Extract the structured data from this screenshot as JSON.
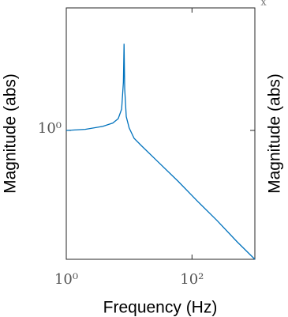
{
  "chart_data": {
    "type": "line",
    "xlabel": "Frequency  (Hz)",
    "ylabel": "Magnitude (abs)",
    "y2label": "Magnitude (abs)",
    "annotation": "x",
    "x": [
      1,
      2,
      3.8,
      5.5,
      6.7,
      7.6,
      8.1,
      8.3,
      8.5,
      9,
      10,
      12,
      16,
      28.8,
      60,
      122,
      250,
      522,
      1000
    ],
    "series": [
      {
        "name": "Magnitude",
        "color": "#0072bd",
        "values": [
          1,
          1.02,
          1.08,
          1.15,
          1.25,
          1.5,
          2.5,
          5.2,
          2.2,
          1.3,
          1.05,
          0.86,
          0.74,
          0.55,
          0.38,
          0.26,
          0.18,
          0.12,
          0.086
        ]
      }
    ],
    "xlim": [
      1,
      1000
    ],
    "ylim": [
      0.086,
      10.3
    ],
    "xscale": "log",
    "yscale": "log",
    "xticks": [
      {
        "value": 1,
        "label": "10⁰"
      },
      {
        "value": 100,
        "label": "10²"
      }
    ],
    "yticks": [
      {
        "value": 1,
        "label": "10⁰"
      }
    ]
  }
}
